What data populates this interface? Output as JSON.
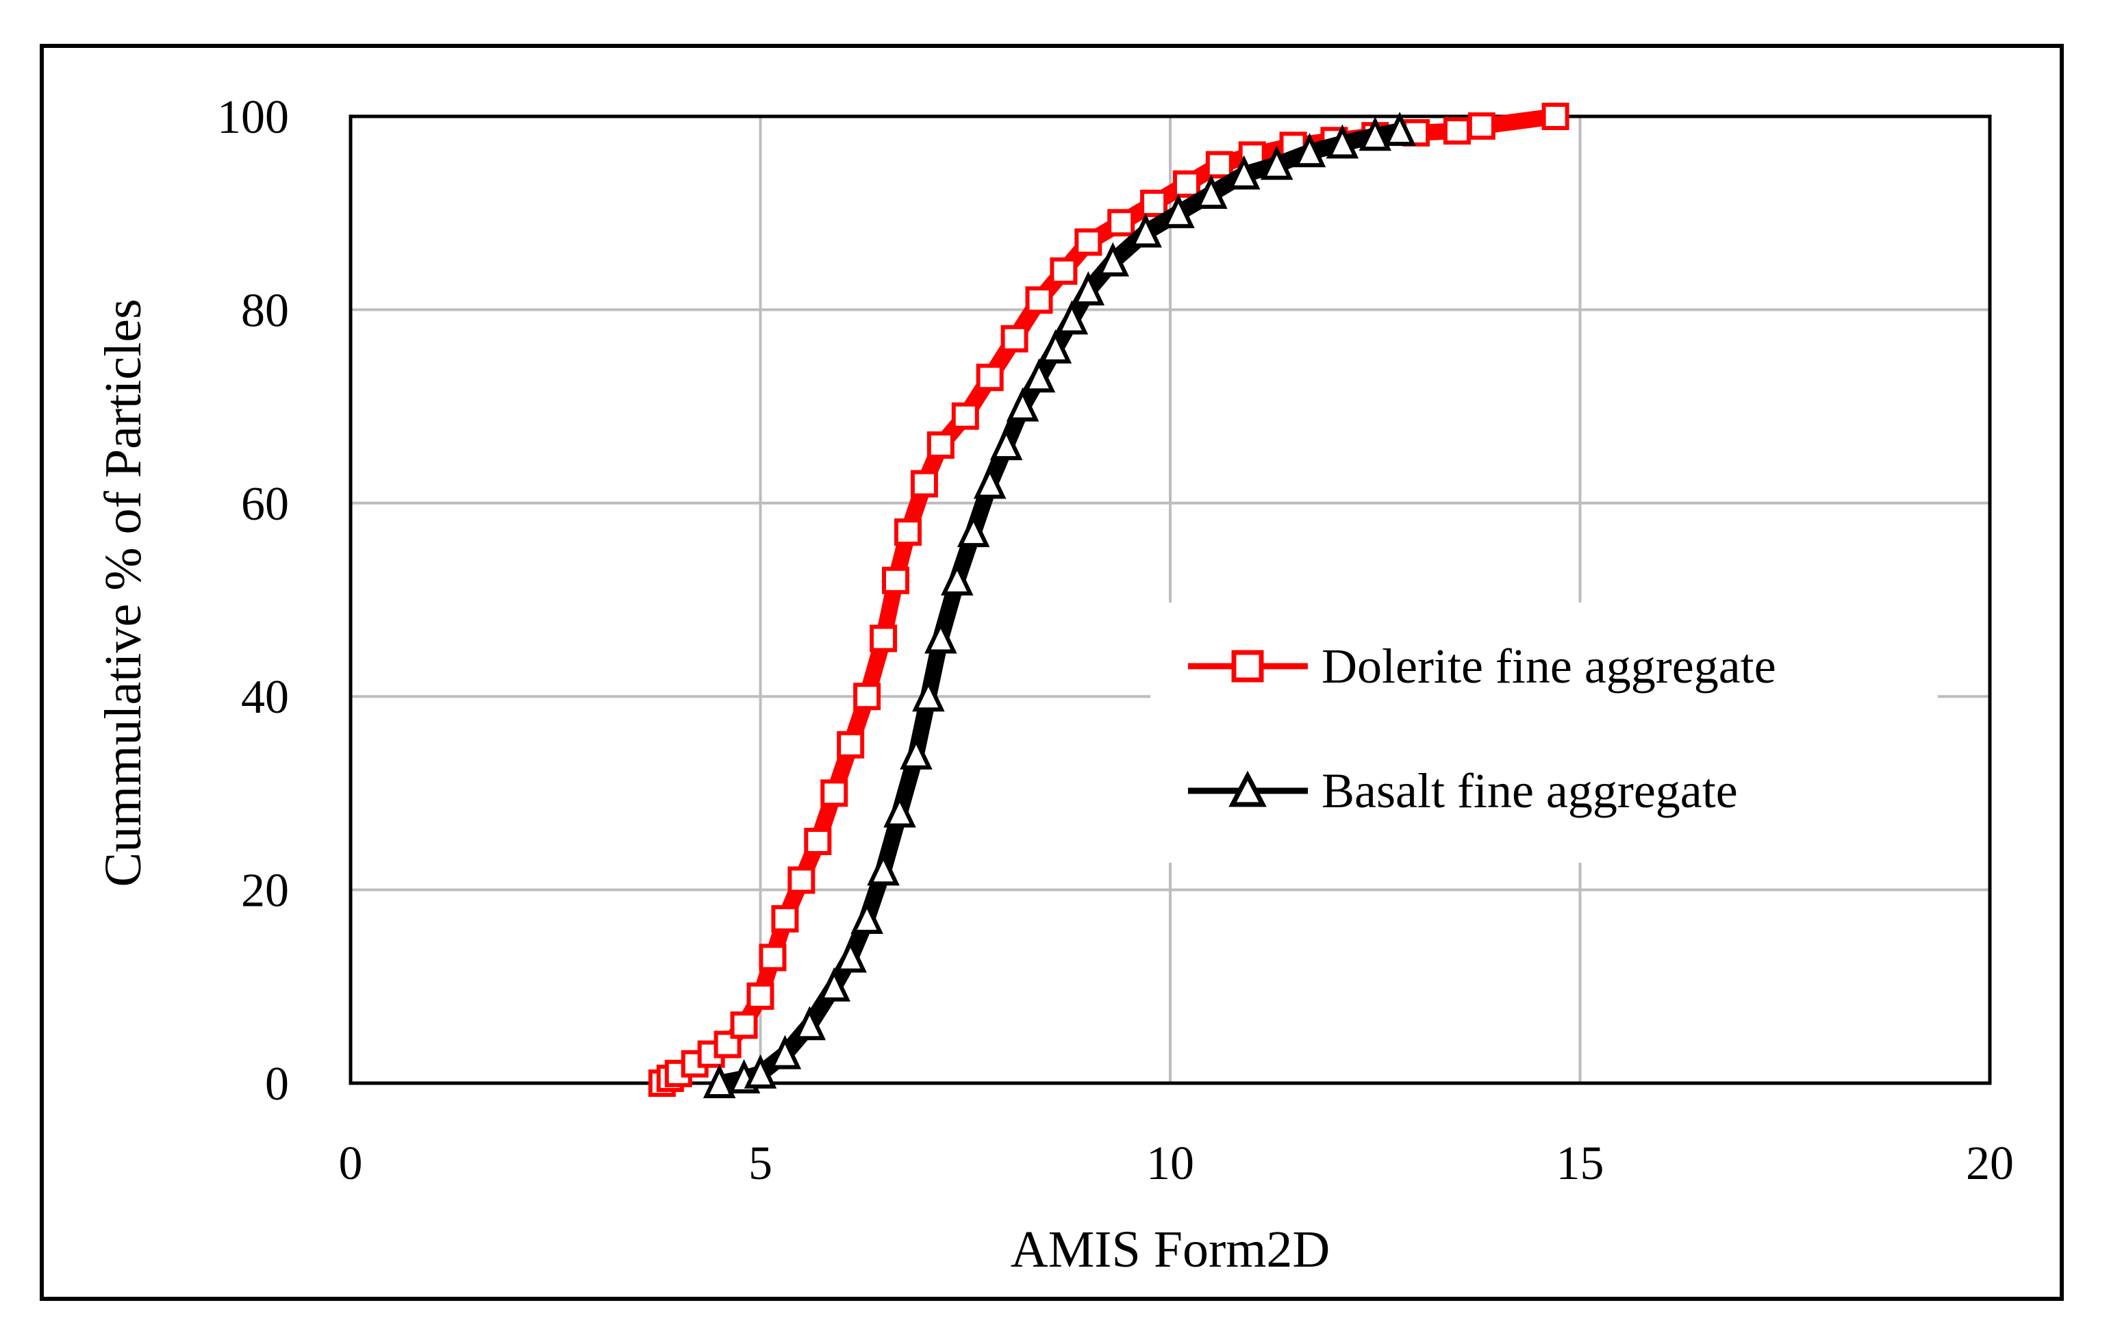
{
  "chart_data": {
    "type": "line",
    "xlabel": "AMIS Form2D",
    "ylabel": "Cummulative % of Particles",
    "xlim": [
      0,
      20
    ],
    "ylim": [
      0,
      100
    ],
    "xticks": [
      "0",
      "5",
      "10",
      "15",
      "20"
    ],
    "yticks": [
      "0",
      "20",
      "40",
      "60",
      "80",
      "100"
    ],
    "grid": true,
    "legend_position": "center-right",
    "series": [
      {
        "name": "Dolerite fine aggregate",
        "color": "#ff0000",
        "marker": "square",
        "points": [
          [
            3.8,
            0
          ],
          [
            3.9,
            0.5
          ],
          [
            4.0,
            1
          ],
          [
            4.2,
            2
          ],
          [
            4.4,
            3
          ],
          [
            4.6,
            4
          ],
          [
            4.8,
            6
          ],
          [
            5.0,
            9
          ],
          [
            5.15,
            13
          ],
          [
            5.3,
            17
          ],
          [
            5.5,
            21
          ],
          [
            5.7,
            25
          ],
          [
            5.9,
            30
          ],
          [
            6.1,
            35
          ],
          [
            6.3,
            40
          ],
          [
            6.5,
            46
          ],
          [
            6.65,
            52
          ],
          [
            6.8,
            57
          ],
          [
            7.0,
            62
          ],
          [
            7.2,
            66
          ],
          [
            7.5,
            69
          ],
          [
            7.8,
            73
          ],
          [
            8.1,
            77
          ],
          [
            8.4,
            81
          ],
          [
            8.7,
            84
          ],
          [
            9.0,
            87
          ],
          [
            9.4,
            89
          ],
          [
            9.8,
            91
          ],
          [
            10.2,
            93
          ],
          [
            10.6,
            95
          ],
          [
            11.0,
            96
          ],
          [
            11.5,
            97
          ],
          [
            12.0,
            97.5
          ],
          [
            12.5,
            98
          ],
          [
            13.0,
            98.3
          ],
          [
            13.5,
            98.5
          ],
          [
            13.8,
            99
          ],
          [
            14.7,
            100
          ]
        ]
      },
      {
        "name": "Basalt fine aggregate",
        "color": "#000000",
        "marker": "triangle",
        "points": [
          [
            4.5,
            0
          ],
          [
            4.8,
            0.5
          ],
          [
            5.0,
            1
          ],
          [
            5.3,
            3
          ],
          [
            5.6,
            6
          ],
          [
            5.9,
            10
          ],
          [
            6.1,
            13
          ],
          [
            6.3,
            17
          ],
          [
            6.5,
            22
          ],
          [
            6.7,
            28
          ],
          [
            6.9,
            34
          ],
          [
            7.05,
            40
          ],
          [
            7.2,
            46
          ],
          [
            7.4,
            52
          ],
          [
            7.6,
            57
          ],
          [
            7.8,
            62
          ],
          [
            8.0,
            66
          ],
          [
            8.2,
            70
          ],
          [
            8.4,
            73
          ],
          [
            8.6,
            76
          ],
          [
            8.8,
            79
          ],
          [
            9.0,
            82
          ],
          [
            9.3,
            85
          ],
          [
            9.7,
            88
          ],
          [
            10.1,
            90
          ],
          [
            10.5,
            92
          ],
          [
            10.9,
            94
          ],
          [
            11.3,
            95
          ],
          [
            11.7,
            96.3
          ],
          [
            12.1,
            97.2
          ],
          [
            12.5,
            98
          ],
          [
            12.8,
            98.5
          ]
        ]
      }
    ]
  }
}
